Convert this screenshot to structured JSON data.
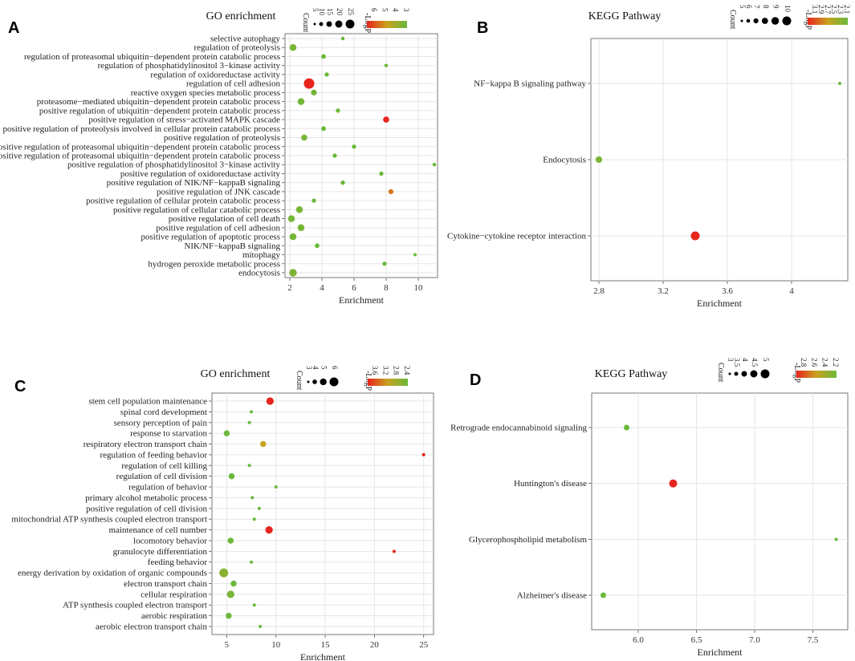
{
  "figure_labels": [
    "A",
    "B",
    "C",
    "D"
  ],
  "chart_data": [
    {
      "panel": "A",
      "type": "scatter",
      "title": "GO enrichment",
      "xlabel": "Enrichment",
      "ylabel": "",
      "xlim": [
        1.7,
        11.2
      ],
      "xticks": [
        2,
        4,
        6,
        8,
        10
      ],
      "size_legend": {
        "title": "Count",
        "values": [
          5,
          10,
          15,
          20,
          25
        ]
      },
      "color_legend": {
        "title": "-LogP",
        "values": [
          6,
          5,
          4,
          3
        ]
      },
      "categories": [
        "selective autophagy",
        "regulation of proteolysis",
        "regulation of proteasomal ubiquitin−dependent protein catabolic process",
        "regulation of phosphatidylinositol 3−kinase activity",
        "regulation of oxidoreductase activity",
        "regulation of cell adhesion",
        "reactive oxygen species metabolic process",
        "proteasome−mediated ubiquitin−dependent protein catabolic process",
        "positive regulation of ubiquitin−dependent protein catabolic process",
        "positive regulation of stress−activated MAPK cascade",
        "positive regulation of proteolysis involved in cellular protein catabolic process",
        "positive regulation of proteolysis",
        "positive regulation of proteasomal ubiquitin−dependent protein catabolic process",
        "positive regulation of proteasomal ubiquitin−dependent protein catabolic process",
        "positive regulation of phosphatidylinositol 3−kinase activity",
        "positive regulation of oxidoreductase activity",
        "positive regulation of NIK/NF−kappaB signaling",
        "positive regulation of JNK cascade",
        "positive regulation of cellular protein catabolic process",
        "positive regulation of cellular catabolic process",
        "positive regulation of cell death",
        "positive regulation of cell adhesion",
        "positive regulation of apoptotic process",
        "NIK/NF−kappaB signaling",
        "mitophagy",
        "hydrogen peroxide metabolic process",
        "endocytosis"
      ],
      "x": [
        5.3,
        2.2,
        4.1,
        8.0,
        4.3,
        3.2,
        3.5,
        2.7,
        5.0,
        8.0,
        4.1,
        2.9,
        6.0,
        4.8,
        11.0,
        7.7,
        5.3,
        8.3,
        3.5,
        2.6,
        2.1,
        2.7,
        2.2,
        3.7,
        9.8,
        7.9,
        2.2
      ],
      "count": [
        3,
        12,
        6,
        3,
        5,
        22,
        9,
        12,
        5,
        10,
        6,
        10,
        5,
        5,
        3,
        5,
        5,
        7,
        5,
        12,
        12,
        12,
        12,
        6,
        2,
        5,
        14
      ],
      "neglogp": [
        3.0,
        3.2,
        3.0,
        2.9,
        3.0,
        6.1,
        3.1,
        3.1,
        3.0,
        6.0,
        3.0,
        3.2,
        3.0,
        3.0,
        2.9,
        3.0,
        3.0,
        5.0,
        3.0,
        3.2,
        3.2,
        3.2,
        3.2,
        3.0,
        2.8,
        3.0,
        3.3
      ]
    },
    {
      "panel": "B",
      "type": "scatter",
      "title": "KEGG Pathway",
      "xlabel": "Enrichment",
      "ylabel": "",
      "xlim": [
        2.75,
        4.35
      ],
      "xticks": [
        2.8,
        3.2,
        3.6,
        4.0
      ],
      "size_legend": {
        "title": "Count",
        "values": [
          5,
          6,
          7,
          8,
          9,
          10
        ]
      },
      "color_legend": {
        "title": "-LogP",
        "values": [
          3.1,
          2.9,
          2.7,
          2.5,
          2.3,
          2.1
        ]
      },
      "categories": [
        "NF−kappa B signaling pathway",
        "Endocytosis",
        "Cytokine−cytokine receptor interaction"
      ],
      "x": [
        4.3,
        2.8,
        3.4
      ],
      "count": [
        4,
        7,
        9
      ],
      "neglogp": [
        2.1,
        2.2,
        3.1
      ]
    },
    {
      "panel": "C",
      "type": "scatter",
      "title": "GO enrichment",
      "xlabel": "Enrichment",
      "ylabel": "",
      "xlim": [
        3.5,
        26
      ],
      "xticks": [
        5,
        10,
        15,
        20,
        25
      ],
      "size_legend": {
        "title": "Count",
        "values": [
          3,
          4,
          5,
          6
        ]
      },
      "color_legend": {
        "title": "-LogP",
        "values": [
          3.6,
          3.2,
          2.8,
          2.4
        ]
      },
      "categories": [
        "stem cell population maintenance",
        "spinal cord development",
        "sensory perception of pain",
        "response to starvation",
        "respiratory electron transport chain",
        "regulation of feeding behavior",
        "regulation of cell killing",
        "regulation of cell division",
        "regulation of behavior",
        "primary alcohol metabolic process",
        "positive regulation of cell division",
        "mitochondrial ATP synthesis coupled electron transport",
        "maintenance of cell number",
        "locomotory behavior",
        "granulocyte differentiation",
        "feeding behavior",
        "energy derivation by oxidation of organic compounds",
        "electron transport chain",
        "cellular respiration",
        "ATP synthesis coupled electron transport",
        "aerobic respiration",
        "aerobic electron transport chain"
      ],
      "x": [
        9.4,
        7.5,
        7.3,
        5.0,
        8.7,
        25.0,
        7.3,
        5.5,
        10.0,
        7.6,
        8.3,
        7.8,
        9.3,
        5.4,
        22.0,
        7.5,
        4.7,
        5.7,
        5.4,
        7.8,
        5.2,
        8.4
      ],
      "count": [
        5,
        2,
        2,
        4,
        4,
        2,
        2,
        4,
        2,
        2,
        2,
        2,
        5,
        4,
        2,
        2,
        6,
        4,
        5,
        2,
        4,
        2
      ],
      "neglogp": [
        3.7,
        2.4,
        2.4,
        2.4,
        3.0,
        3.7,
        2.4,
        2.4,
        2.4,
        2.4,
        2.4,
        2.4,
        3.7,
        2.4,
        3.7,
        2.4,
        2.6,
        2.4,
        2.5,
        2.4,
        2.4,
        2.4
      ]
    },
    {
      "panel": "D",
      "type": "scatter",
      "title": "KEGG Pathway",
      "xlabel": "Enrichment",
      "ylabel": "",
      "xlim": [
        5.6,
        7.8
      ],
      "xticks": [
        6.0,
        6.5,
        7.0,
        7.5
      ],
      "xtick_labels": [
        "6.0",
        "6.5",
        "7.0",
        "7.5"
      ],
      "size_legend": {
        "title": "Count",
        "values": [
          3.0,
          3.5,
          4.0,
          4.5,
          5.0
        ]
      },
      "color_legend": {
        "title": "-LogP",
        "values": [
          2.8,
          2.6,
          2.4,
          2.2
        ]
      },
      "categories": [
        "Retrograde endocannabinoid signaling",
        "Huntington's disease",
        "Glycerophospholipid metabolism",
        "Alzheimer's disease"
      ],
      "x": [
        5.9,
        6.3,
        7.7,
        5.7
      ],
      "count": [
        4,
        5,
        3,
        4
      ],
      "neglogp": [
        2.1,
        2.9,
        2.1,
        2.1
      ]
    }
  ]
}
